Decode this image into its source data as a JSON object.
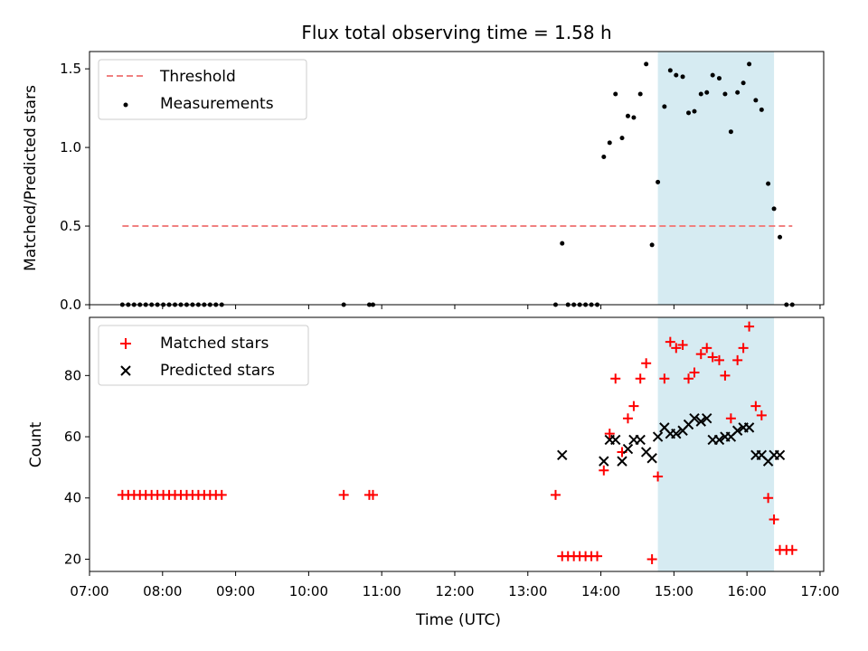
{
  "chart_data": [
    {
      "type": "scatter",
      "title": "Flux total observing time = 1.58 h",
      "xlabel": "",
      "ylabel": "Matched/Predicted stars",
      "xlim": [
        7.0,
        17.05
      ],
      "ylim": [
        0.0,
        1.61
      ],
      "yticks": [
        0.0,
        0.5,
        1.0,
        1.5
      ],
      "ytick_labels": [
        "0.0",
        "0.5",
        "1.0",
        "1.5"
      ],
      "highlight_span": [
        14.78,
        16.37
      ],
      "colors": {
        "threshold": "#f08080",
        "measurements": "#000000",
        "span": "#add8e6"
      },
      "threshold": {
        "name": "Threshold",
        "value": 0.5,
        "x_range": [
          7.45,
          16.62
        ]
      },
      "legend": [
        "Threshold",
        "Measurements"
      ],
      "legend_position": "upper-left",
      "series": [
        {
          "name": "Measurements",
          "x": [
            7.45,
            7.53,
            7.61,
            7.69,
            7.77,
            7.85,
            7.93,
            8.01,
            8.09,
            8.17,
            8.25,
            8.33,
            8.41,
            8.49,
            8.57,
            8.65,
            8.73,
            8.81,
            10.48,
            10.83,
            10.88,
            13.38,
            13.47,
            13.55,
            13.63,
            13.71,
            13.79,
            13.87,
            13.95,
            14.04,
            14.12,
            14.2,
            14.29,
            14.37,
            14.45,
            14.54,
            14.62,
            14.7,
            14.78,
            14.87,
            14.95,
            15.03,
            15.12,
            15.2,
            15.28,
            15.37,
            15.45,
            15.53,
            15.62,
            15.7,
            15.78,
            15.87,
            15.95,
            16.03,
            16.12,
            16.2,
            16.29,
            16.37,
            16.45,
            16.54,
            16.62
          ],
          "y": [
            0,
            0,
            0,
            0,
            0,
            0,
            0,
            0,
            0,
            0,
            0,
            0,
            0,
            0,
            0,
            0,
            0,
            0,
            0,
            0,
            0,
            0,
            0.39,
            0,
            0,
            0,
            0,
            0,
            0,
            0.94,
            1.03,
            1.34,
            1.06,
            1.2,
            1.19,
            1.34,
            1.53,
            0.38,
            0.78,
            1.26,
            1.49,
            1.46,
            1.45,
            1.22,
            1.23,
            1.34,
            1.35,
            1.46,
            1.44,
            1.34,
            1.1,
            1.35,
            1.41,
            1.53,
            1.3,
            1.24,
            0.77,
            0.61,
            0.43,
            0,
            0
          ]
        }
      ]
    },
    {
      "type": "scatter",
      "title": "",
      "xlabel": "Time (UTC)",
      "ylabel": "Count",
      "xlim": [
        7.0,
        17.05
      ],
      "ylim": [
        16,
        99
      ],
      "yticks": [
        20,
        40,
        60,
        80
      ],
      "ytick_labels": [
        "20",
        "40",
        "60",
        "80"
      ],
      "xticks": [
        7,
        8,
        9,
        10,
        11,
        12,
        13,
        14,
        15,
        16,
        17
      ],
      "xtick_labels": [
        "07:00",
        "08:00",
        "09:00",
        "10:00",
        "11:00",
        "12:00",
        "13:00",
        "14:00",
        "15:00",
        "16:00",
        "17:00"
      ],
      "highlight_span": [
        14.78,
        16.37
      ],
      "colors": {
        "matched": "#ff0000",
        "predicted": "#000000",
        "span": "#add8e6"
      },
      "legend": [
        "Matched stars",
        "Predicted stars"
      ],
      "legend_position": "upper-left",
      "series": [
        {
          "name": "Matched stars",
          "x": [
            7.45,
            7.53,
            7.61,
            7.69,
            7.77,
            7.85,
            7.93,
            8.01,
            8.09,
            8.17,
            8.25,
            8.33,
            8.41,
            8.49,
            8.57,
            8.65,
            8.73,
            8.81,
            10.48,
            10.83,
            10.88,
            13.38,
            13.47,
            13.55,
            13.63,
            13.71,
            13.79,
            13.87,
            13.95,
            14.04,
            14.12,
            14.2,
            14.29,
            14.37,
            14.45,
            14.54,
            14.62,
            14.7,
            14.78,
            14.87,
            14.95,
            15.03,
            15.12,
            15.2,
            15.28,
            15.37,
            15.45,
            15.53,
            15.62,
            15.7,
            15.78,
            15.87,
            15.95,
            16.03,
            16.12,
            16.2,
            16.29,
            16.37,
            16.45,
            16.54,
            16.62
          ],
          "y": [
            41,
            41,
            41,
            41,
            41,
            41,
            41,
            41,
            41,
            41,
            41,
            41,
            41,
            41,
            41,
            41,
            41,
            41,
            41,
            41,
            41,
            41,
            21,
            21,
            21,
            21,
            21,
            21,
            21,
            49,
            61,
            79,
            55,
            66,
            70,
            79,
            84,
            20,
            47,
            79,
            91,
            89,
            90,
            79,
            81,
            87,
            89,
            86,
            85,
            80,
            66,
            85,
            89,
            96,
            70,
            67,
            40,
            33,
            23,
            23,
            23
          ]
        },
        {
          "name": "Predicted stars",
          "x": [
            13.47,
            14.04,
            14.12,
            14.2,
            14.29,
            14.37,
            14.45,
            14.54,
            14.62,
            14.7,
            14.78,
            14.87,
            14.95,
            15.03,
            15.12,
            15.2,
            15.28,
            15.37,
            15.45,
            15.53,
            15.62,
            15.7,
            15.78,
            15.87,
            15.95,
            16.03,
            16.12,
            16.2,
            16.29,
            16.37,
            16.45
          ],
          "y": [
            54,
            52,
            59,
            59,
            52,
            56,
            59,
            59,
            55,
            53,
            60,
            63,
            61,
            61,
            62,
            64,
            66,
            65,
            66,
            59,
            59,
            60,
            60,
            62,
            63,
            63,
            54,
            54,
            52,
            54,
            54
          ]
        }
      ]
    }
  ]
}
